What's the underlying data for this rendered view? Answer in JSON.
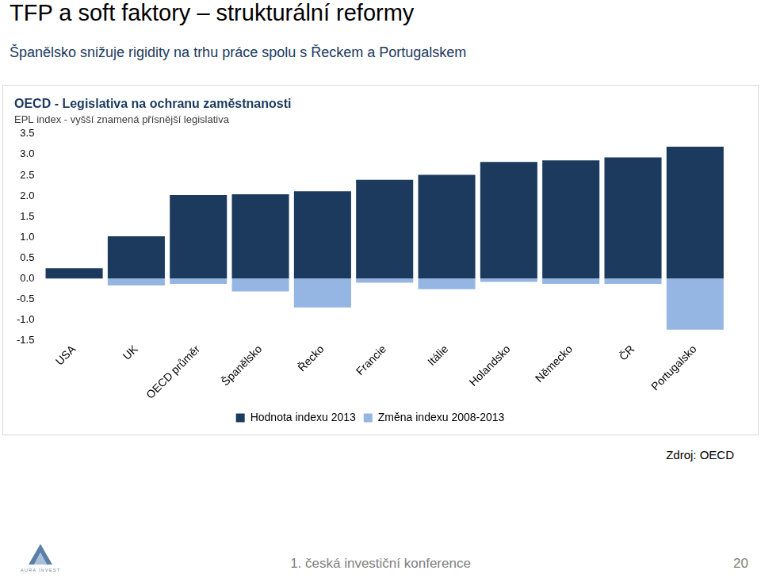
{
  "page": {
    "heading": "TFP a soft faktory – strukturální reformy",
    "subheading": "Španělsko snižuje rigidity na trhu práce spolu s Řeckem a Portugalskem",
    "source": "Zdroj: OECD",
    "footer": "1. česká investiční konference",
    "page_number": "20",
    "logo": "AURA INVEST"
  },
  "chart_data": {
    "type": "bar",
    "title": "OECD - Legislativa na ochranu zaměstnanosti",
    "subtitle": "EPL index - vyšší znamená přísnější legislativa",
    "categories": [
      "USA",
      "UK",
      "OECD průměr",
      "Španělsko",
      "Řecko",
      "Francie",
      "Itálie",
      "Holandsko",
      "Německo",
      "ČR",
      "Portugalsko"
    ],
    "series": [
      {
        "name": "Hodnota indexu 2013",
        "color": "#1b3a5e",
        "values": [
          0.25,
          1.02,
          2.02,
          2.04,
          2.11,
          2.39,
          2.51,
          2.82,
          2.86,
          2.93,
          3.19
        ]
      },
      {
        "name": "Změna indexu 2008-2013",
        "color": "#95b6e3",
        "values": [
          0,
          -0.17,
          -0.13,
          -0.31,
          -0.7,
          -0.1,
          -0.26,
          -0.08,
          -0.13,
          -0.13,
          -1.24
        ]
      }
    ],
    "stacked": true,
    "ylim": [
      -1.5,
      3.5
    ],
    "yticks": [
      -1.5,
      {
        "value": -1,
        "label": "-1.0"
      },
      -0.5,
      {
        "value": 0,
        "label": "0.0"
      },
      0.5,
      {
        "value": 1,
        "label": "1.0"
      },
      1.5,
      {
        "value": 2,
        "label": "2.0"
      },
      2.5,
      {
        "value": 3,
        "label": "3.0"
      },
      3.5
    ],
    "grid": false,
    "legend": "bottom"
  }
}
